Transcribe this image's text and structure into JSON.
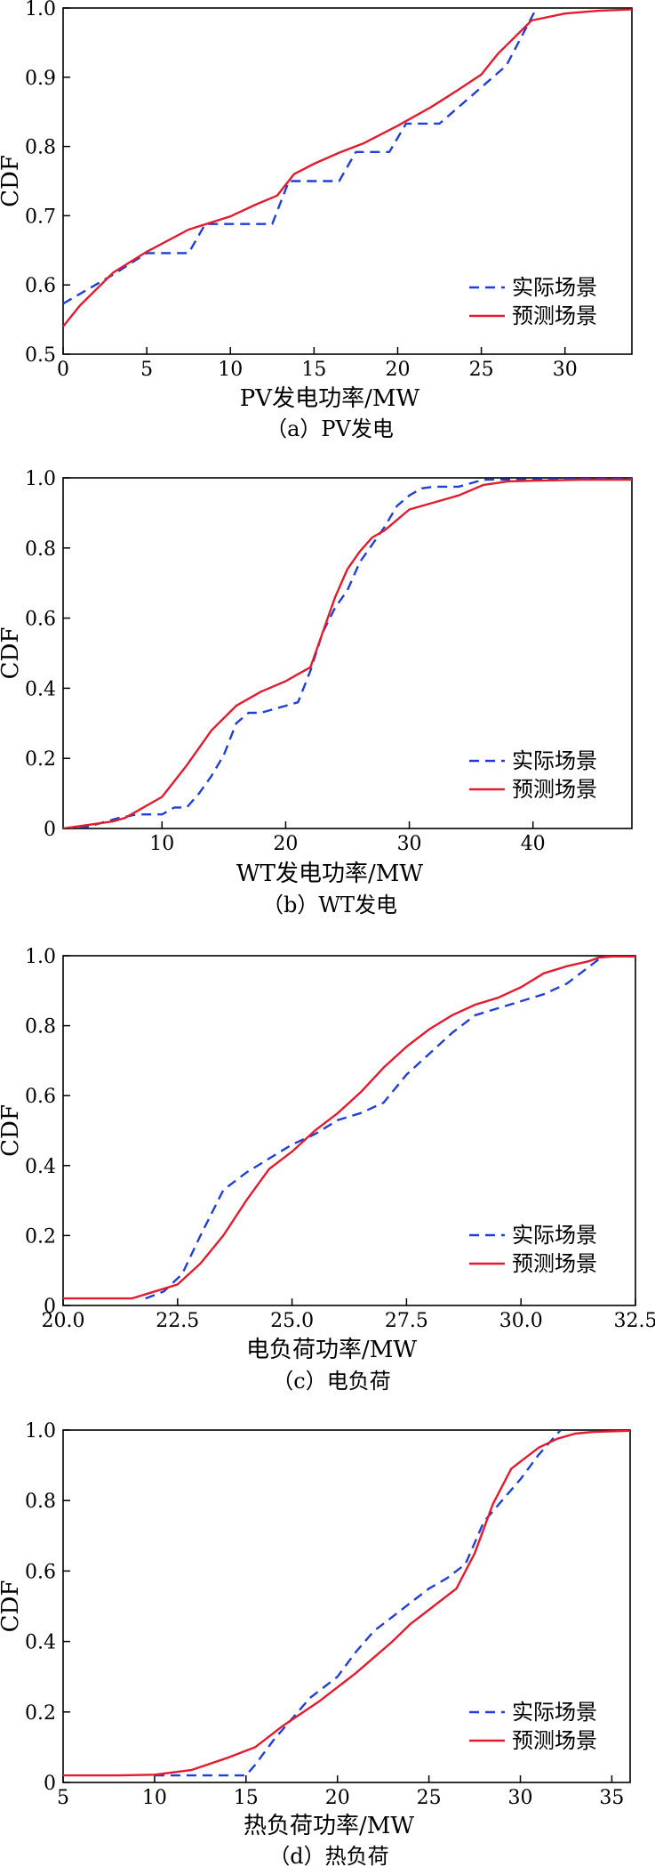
{
  "chart_data": [
    {
      "type": "line",
      "ylabel": "CDF",
      "xlabel": "PV发电功率/MW",
      "caption": "（a）PV发电",
      "xlim": [
        0,
        34
      ],
      "ylim": [
        0.5,
        1.0
      ],
      "xticks": [
        0,
        5,
        10,
        15,
        20,
        25,
        30
      ],
      "xtick_labels": [
        "0",
        "5",
        "10",
        "15",
        "20",
        "25",
        "30"
      ],
      "yticks": [
        0.5,
        0.6,
        0.7,
        0.8,
        0.9,
        1.0
      ],
      "ytick_labels": [
        "0.5",
        "0.6",
        "0.7",
        "0.8",
        "0.9",
        "1.0"
      ],
      "legend_position": "bottom-right",
      "series": [
        {
          "name": "实际场景",
          "style": "dashed",
          "color": "#1f3fd6",
          "x": [
            0,
            1.5,
            3,
            5,
            7.5,
            8.5,
            10,
            12.5,
            13.5,
            16.5,
            17.5,
            19.5,
            20.5,
            22.5,
            24.5,
            26.5,
            28.3
          ],
          "y": [
            0.573,
            0.594,
            0.615,
            0.646,
            0.646,
            0.688,
            0.688,
            0.688,
            0.75,
            0.75,
            0.792,
            0.792,
            0.833,
            0.833,
            0.875,
            0.917,
            1.0
          ]
        },
        {
          "name": "预测场景",
          "style": "solid",
          "color": "#e21b2e",
          "x": [
            0,
            1,
            3,
            5,
            7.5,
            10,
            11.5,
            12.8,
            13.8,
            15,
            16.5,
            18,
            20,
            22,
            23.5,
            25,
            26,
            28,
            30,
            32,
            34
          ],
          "y": [
            0.54,
            0.57,
            0.618,
            0.648,
            0.68,
            0.699,
            0.716,
            0.729,
            0.76,
            0.775,
            0.791,
            0.805,
            0.83,
            0.857,
            0.88,
            0.904,
            0.934,
            0.982,
            0.992,
            0.996,
            0.998
          ]
        }
      ]
    },
    {
      "type": "line",
      "ylabel": "CDF",
      "xlabel": "WT发电功率/MW",
      "caption": "（b）WT发电",
      "xlim": [
        2,
        48
      ],
      "ylim": [
        0,
        1.0
      ],
      "xticks": [
        10,
        20,
        30,
        40
      ],
      "xtick_labels": [
        "10",
        "20",
        "30",
        "40"
      ],
      "yticks": [
        0,
        0.2,
        0.4,
        0.6,
        0.8,
        1.0
      ],
      "ytick_labels": [
        "0",
        "0.2",
        "0.4",
        "0.6",
        "0.8",
        "1.0"
      ],
      "legend_position": "bottom-right",
      "series": [
        {
          "name": "实际场景",
          "style": "dashed",
          "color": "#1f3fd6",
          "x": [
            2,
            4,
            5.5,
            6.5,
            8,
            10,
            11,
            12,
            13,
            14,
            15,
            16,
            17,
            18,
            19,
            20,
            21,
            22,
            23,
            24,
            25,
            26,
            27,
            28,
            29,
            30,
            31,
            32,
            34,
            36,
            48
          ],
          "y": [
            0.0,
            0.005,
            0.02,
            0.03,
            0.04,
            0.04,
            0.06,
            0.06,
            0.1,
            0.15,
            0.21,
            0.3,
            0.33,
            0.33,
            0.34,
            0.35,
            0.36,
            0.45,
            0.56,
            0.63,
            0.68,
            0.76,
            0.81,
            0.86,
            0.92,
            0.95,
            0.97,
            0.975,
            0.975,
            0.995,
            0.998
          ]
        },
        {
          "name": "预测场景",
          "style": "solid",
          "color": "#e21b2e",
          "x": [
            2,
            4,
            6,
            7,
            8,
            10,
            12,
            14,
            16,
            18,
            20,
            21,
            22,
            23,
            24,
            25,
            26,
            27,
            28,
            30,
            32,
            34,
            36,
            38,
            40,
            44,
            48
          ],
          "y": [
            0.0,
            0.01,
            0.02,
            0.03,
            0.05,
            0.09,
            0.18,
            0.28,
            0.35,
            0.39,
            0.42,
            0.44,
            0.46,
            0.56,
            0.66,
            0.74,
            0.79,
            0.83,
            0.85,
            0.91,
            0.93,
            0.95,
            0.98,
            0.99,
            0.992,
            0.995,
            0.995
          ]
        }
      ]
    },
    {
      "type": "line",
      "ylabel": "CDF",
      "xlabel": "电负荷功率/MW",
      "caption": "（c）电负荷",
      "xlim": [
        20,
        32.5
      ],
      "ylim": [
        0,
        1.0
      ],
      "xticks": [
        20,
        22.5,
        25,
        27.5,
        30,
        32.5
      ],
      "xtick_labels": [
        "20.0",
        "22.5",
        "25.0",
        "27.5",
        "30.0",
        "32.5"
      ],
      "yticks": [
        0,
        0.2,
        0.4,
        0.6,
        0.8,
        1.0
      ],
      "ytick_labels": [
        "0",
        "0.2",
        "0.4",
        "0.6",
        "0.8",
        "1.0"
      ],
      "legend_position": "bottom-right",
      "series": [
        {
          "name": "实际场景",
          "style": "dashed",
          "color": "#1f3fd6",
          "x": [
            21.8,
            22.2,
            22.6,
            23.0,
            23.5,
            24.0,
            24.5,
            25.0,
            25.5,
            26.0,
            26.5,
            27.0,
            27.5,
            28.0,
            28.5,
            29.0,
            29.5,
            30.0,
            30.5,
            31.0,
            31.5,
            31.8,
            32.5
          ],
          "y": [
            0.02,
            0.04,
            0.09,
            0.2,
            0.33,
            0.38,
            0.42,
            0.46,
            0.49,
            0.53,
            0.55,
            0.58,
            0.66,
            0.72,
            0.78,
            0.83,
            0.85,
            0.87,
            0.89,
            0.92,
            0.97,
            1.0,
            1.0
          ]
        },
        {
          "name": "预测场景",
          "style": "solid",
          "color": "#e21b2e",
          "x": [
            20,
            21,
            21.5,
            22,
            22.5,
            23,
            23.5,
            24,
            24.5,
            25,
            25.5,
            26,
            26.5,
            27,
            27.5,
            28,
            28.5,
            29,
            29.5,
            30,
            30.5,
            31,
            31.5,
            31.7,
            32,
            32.5
          ],
          "y": [
            0.02,
            0.02,
            0.02,
            0.04,
            0.06,
            0.12,
            0.2,
            0.3,
            0.39,
            0.44,
            0.5,
            0.55,
            0.61,
            0.68,
            0.74,
            0.79,
            0.83,
            0.86,
            0.88,
            0.91,
            0.95,
            0.97,
            0.985,
            0.995,
            0.998,
            0.998
          ]
        }
      ]
    },
    {
      "type": "line",
      "ylabel": "CDF",
      "xlabel": "热负荷功率/MW",
      "caption": "（d）热负荷",
      "xlim": [
        5,
        36
      ],
      "ylim": [
        0,
        1.0
      ],
      "xticks": [
        5,
        10,
        15,
        20,
        25,
        30,
        35
      ],
      "xtick_labels": [
        "5",
        "10",
        "15",
        "20",
        "25",
        "30",
        "35"
      ],
      "yticks": [
        0,
        0.2,
        0.4,
        0.6,
        0.8,
        1.0
      ],
      "ytick_labels": [
        "0",
        "0.2",
        "0.4",
        "0.6",
        "0.8",
        "1.0"
      ],
      "legend_position": "bottom-right",
      "series": [
        {
          "name": "实际场景",
          "style": "dashed",
          "color": "#1f3fd6",
          "x": [
            10,
            12,
            15,
            15.5,
            16.5,
            17.5,
            18.5,
            20,
            21,
            22,
            23,
            24,
            25,
            26,
            27,
            28,
            29,
            30,
            31,
            32.2
          ],
          "y": [
            0.02,
            0.02,
            0.02,
            0.05,
            0.12,
            0.18,
            0.24,
            0.3,
            0.37,
            0.43,
            0.47,
            0.51,
            0.55,
            0.58,
            0.62,
            0.74,
            0.8,
            0.86,
            0.93,
            1.0
          ]
        },
        {
          "name": "预测场景",
          "style": "solid",
          "color": "#e21b2e",
          "x": [
            5,
            8,
            10,
            12,
            14,
            15.5,
            17,
            19,
            21,
            23,
            24,
            25,
            26.5,
            27.5,
            28.5,
            29.5,
            30,
            31,
            32,
            33,
            34,
            36
          ],
          "y": [
            0.02,
            0.02,
            0.022,
            0.035,
            0.07,
            0.1,
            0.16,
            0.23,
            0.31,
            0.4,
            0.45,
            0.49,
            0.55,
            0.65,
            0.79,
            0.89,
            0.91,
            0.95,
            0.975,
            0.99,
            0.995,
            0.998
          ]
        }
      ]
    }
  ]
}
